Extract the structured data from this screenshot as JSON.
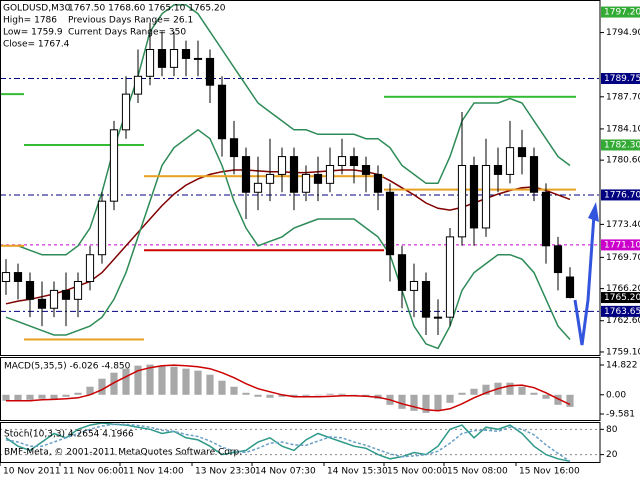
{
  "chart_data": [
    {
      "type": "candlestick",
      "title": "GOLDUSD,M30",
      "quote": "1767.50 1768.60 1765.10 1765.20",
      "info": [
        "High= 1786",
        "Previous Days Range= 26.1",
        "Low= 1759.9",
        "Current Days Range= 350",
        "Close= 1767.4"
      ],
      "categories": [
        "10 Nov 2011",
        null,
        null,
        null,
        null,
        "11 Nov 06:00",
        null,
        null,
        null,
        null,
        "11 Nov 14:00",
        null,
        null,
        null,
        null,
        null,
        "13 Nov 23:30",
        null,
        null,
        null,
        null,
        "14 Nov 07:30",
        null,
        null,
        null,
        null,
        null,
        "14 Nov 15:30",
        null,
        null,
        null,
        null,
        "15 Nov 00:00",
        null,
        null,
        null,
        null,
        "15 Nov 08:00",
        null,
        null,
        null,
        null,
        null,
        "15 Nov 16:00",
        null,
        null,
        null,
        null
      ],
      "open": [
        1767,
        1768,
        1767,
        1765,
        1764,
        1766,
        1765,
        1767,
        1770,
        1776,
        1784,
        1788,
        1790,
        1793,
        1791,
        1793,
        1792,
        1792,
        1789,
        1783,
        1781,
        1777,
        1778,
        1779,
        1781,
        1777,
        1779,
        1778,
        1780,
        1781,
        1780,
        1779,
        1777,
        1770,
        1766,
        1767,
        1763,
        1763,
        1772,
        1780,
        1773,
        1780,
        1779,
        1782,
        1781,
        1777,
        1771,
        1767.5
      ],
      "high": [
        1769.5,
        1769,
        1768,
        1767,
        1767,
        1768,
        1768,
        1771,
        1777,
        1785,
        1790,
        1793,
        1796,
        1795,
        1795,
        1794,
        1794,
        1793,
        1790,
        1785,
        1782,
        1781,
        1783,
        1782,
        1782,
        1780,
        1781,
        1782,
        1783,
        1782,
        1781,
        1780,
        1778,
        1771,
        1769,
        1768,
        1765,
        1773,
        1786,
        1781,
        1783,
        1782,
        1785,
        1784,
        1782,
        1778,
        1772,
        1768.6
      ],
      "low": [
        1765.5,
        1765,
        1763,
        1762,
        1763,
        1762,
        1763,
        1766,
        1769,
        1775,
        1783,
        1787,
        1789,
        1790,
        1790,
        1790,
        1790,
        1787,
        1781,
        1779,
        1774,
        1775,
        1776,
        1777,
        1775,
        1776,
        1776,
        1777,
        1779,
        1778,
        1777,
        1775,
        1767,
        1764,
        1763,
        1761,
        1761,
        1762,
        1771,
        1771,
        1772,
        1777,
        1778,
        1779,
        1776,
        1769,
        1766,
        1765.1
      ],
      "close": [
        1768,
        1767,
        1765,
        1764,
        1766,
        1765,
        1767,
        1770,
        1776,
        1784,
        1788,
        1790,
        1793,
        1791,
        1793,
        1792,
        1792,
        1789,
        1783,
        1781,
        1777,
        1778,
        1779,
        1781,
        1777,
        1779,
        1778,
        1780,
        1781,
        1780,
        1779,
        1777,
        1770,
        1766,
        1767,
        1763,
        1763,
        1772,
        1780,
        1773,
        1780,
        1779,
        1782,
        1781,
        1777,
        1771,
        1768,
        1765.2
      ],
      "series": [
        {
          "color": "#2e8b57",
          "style": "line",
          "values": [
            1771,
            1771,
            1770.5,
            1770,
            1770,
            1770,
            1771,
            1773,
            1777,
            1782,
            1786,
            1790,
            1795,
            1797,
            1798,
            1798,
            1797,
            1795,
            1793,
            1791,
            1789,
            1787,
            1786,
            1785,
            1784,
            1784,
            1783.5,
            1783.5,
            1783.5,
            1783.5,
            1783,
            1783,
            1782,
            1780,
            1779,
            1778,
            1778,
            1781,
            1785,
            1787,
            1787,
            1787,
            1787.5,
            1787,
            1785,
            1783,
            1781,
            1780
          ]
        },
        {
          "color": "#800000",
          "style": "line",
          "values": [
            1764.5,
            1764.8,
            1765,
            1765.3,
            1765.6,
            1766,
            1766.5,
            1767,
            1768,
            1769.5,
            1771,
            1772.5,
            1774,
            1775.5,
            1776.8,
            1777.8,
            1778.5,
            1779,
            1779.3,
            1779.5,
            1779.5,
            1779.4,
            1779.3,
            1779.3,
            1779.2,
            1779.2,
            1779.3,
            1779.4,
            1779.5,
            1779.5,
            1779.3,
            1779,
            1778.3,
            1777.5,
            1776.7,
            1775.8,
            1775.2,
            1775,
            1775.3,
            1775.8,
            1776.3,
            1776.8,
            1777.2,
            1777.5,
            1777.6,
            1777.2,
            1776.7,
            1776.2
          ]
        },
        {
          "color": "#2e8b57",
          "style": "line",
          "values": [
            1763,
            1762.5,
            1762,
            1761.5,
            1761,
            1761,
            1761.5,
            1762,
            1763,
            1765,
            1768,
            1772,
            1776,
            1780,
            1782,
            1783,
            1784,
            1783,
            1780,
            1776,
            1773,
            1771,
            1771.5,
            1772,
            1773,
            1773.5,
            1774,
            1774,
            1774,
            1774,
            1773,
            1772,
            1770,
            1766,
            1762,
            1760,
            1759.5,
            1762,
            1766,
            1768,
            1769,
            1770,
            1770,
            1769.5,
            1768,
            1765,
            1762,
            1760.5
          ]
        },
        {
          "color": "#33bb33",
          "style": "step",
          "values": [
            1788,
            1788,
            1782.3,
            1782.3,
            1782.3,
            1782.3,
            1782.3,
            1782.3,
            1782.3,
            1782.3,
            1782.3,
            1782.3,
            null,
            null,
            null,
            null,
            null,
            null,
            null,
            null,
            null,
            null,
            null,
            null,
            null,
            null,
            null,
            null,
            null,
            null,
            null,
            null,
            1787.7,
            1787.7,
            1787.7,
            1787.7,
            1787.7,
            1787.7,
            1787.7,
            1787.7,
            1787.7,
            1787.7,
            1787.7,
            1787.7,
            1787.7,
            1787.7,
            1787.7,
            1787.7
          ]
        },
        {
          "color": "#e8a020",
          "style": "step",
          "values": [
            1771,
            1771,
            1760.5,
            1760.5,
            1760.5,
            1760.5,
            1760.5,
            1760.5,
            1760.5,
            1760.5,
            1760.5,
            1760.5,
            1778.8,
            1778.8,
            1778.8,
            1778.8,
            1778.8,
            1778.8,
            1778.8,
            1778.8,
            1778.8,
            1778.8,
            1778.8,
            1778.8,
            1778.8,
            1778.8,
            1778.8,
            1778.8,
            1778.8,
            1778.8,
            1778.8,
            1778.8,
            1777.3,
            1777.3,
            1777.3,
            1777.3,
            1777.3,
            1777.3,
            1777.3,
            1777.3,
            1777.3,
            1777.3,
            1777.3,
            1777.3,
            1777.3,
            1777.3,
            1777.3,
            1777.3
          ]
        },
        {
          "color": "#cc0000",
          "style": "step",
          "values": [
            null,
            null,
            null,
            null,
            null,
            null,
            null,
            null,
            null,
            null,
            null,
            null,
            1770.5,
            1770.5,
            1770.5,
            1770.5,
            1770.5,
            1770.5,
            1770.5,
            1770.5,
            1770.5,
            1770.5,
            1770.5,
            1770.5,
            1770.5,
            1770.5,
            1770.5,
            1770.5,
            1770.5,
            1770.5,
            1770.5,
            1770.5,
            null,
            null,
            null,
            null,
            null,
            null,
            null,
            null,
            null,
            null,
            null,
            null,
            null,
            null,
            null,
            null
          ]
        }
      ],
      "hlines": [
        {
          "value": 1789.75,
          "color": "#000080",
          "dash": "6 3 2 3"
        },
        {
          "value": 1776.7,
          "color": "#000080",
          "dash": "6 3 2 3"
        },
        {
          "value": 1763.65,
          "color": "#000080",
          "dash": "6 3 2 3"
        },
        {
          "value": 1771.1,
          "color": "#cc00cc",
          "dash": "3 3"
        }
      ],
      "price_tags": [
        {
          "value": 1797.2,
          "label": "1797.20",
          "color": "#33aa33"
        },
        {
          "value": 1789.75,
          "label": "1789.75",
          "color": "#000080"
        },
        {
          "value": 1782.3,
          "label": "1782.30",
          "color": "#33aa33"
        },
        {
          "value": 1776.7,
          "label": "1776.70",
          "color": "#000080"
        },
        {
          "value": 1771.1,
          "label": "1771.10",
          "color": "#cc00cc"
        },
        {
          "value": 1765.2,
          "label": "1765.20",
          "color": "#000000"
        },
        {
          "value": 1763.65,
          "label": "1763.65",
          "color": "#000080"
        }
      ],
      "ylim": [
        1758.76,
        1798.55
      ],
      "yticks": [
        {
          "value": 1794.9,
          "label": "1794.90"
        },
        {
          "value": 1787.7,
          "label": "1787.70"
        },
        {
          "value": 1784.1,
          "label": "1784.10"
        },
        {
          "value": 1780.6,
          "label": "1780.60"
        },
        {
          "value": 1773.4,
          "label": "1773.40"
        },
        {
          "value": 1769.7,
          "label": "1769.70"
        },
        {
          "value": 1766.2,
          "label": "1766.20"
        },
        {
          "value": 1762.6,
          "label": "1762.60"
        },
        {
          "value": 1759.1,
          "label": "1759.10"
        }
      ]
    },
    {
      "type": "macd",
      "title": "MACD(5,35,5) -6.026 -4.850",
      "series": [
        {
          "color": "#a8a8a8",
          "style": "histogram",
          "values": [
            -3,
            -3,
            -2.5,
            -2,
            -2,
            -1,
            1,
            4,
            8,
            11,
            13,
            14.5,
            15,
            14.5,
            14,
            13,
            12,
            10,
            7,
            4,
            1,
            -1,
            -1.5,
            -1,
            -1,
            -0.5,
            0,
            0.5,
            0.5,
            0,
            -1,
            -2,
            -5,
            -7,
            -8,
            -9,
            -8,
            -4,
            1,
            3,
            5,
            6,
            6,
            4,
            1,
            -2,
            -5,
            -6.026
          ]
        },
        {
          "color": "#cc0000",
          "style": "line",
          "values": [
            -3,
            -3,
            -3,
            -2.5,
            -2.3,
            -2,
            -1.5,
            0,
            2.5,
            6,
            9,
            12,
            13.5,
            14.5,
            14.8,
            14.5,
            14,
            13,
            11,
            8.5,
            5.5,
            3,
            1.5,
            0,
            -1,
            -1,
            -1,
            -0.8,
            -0.5,
            -0.5,
            -0.7,
            -1.2,
            -2.5,
            -4.5,
            -6,
            -7.5,
            -8,
            -7,
            -4.5,
            -1.5,
            1,
            3,
            4.5,
            4.8,
            3.5,
            1,
            -2,
            -4.85
          ]
        }
      ],
      "ylim": [
        -12.57,
        18.81
      ],
      "yticks": [
        14.822,
        {
          "value": 0,
          "label": "0.00"
        },
        -9.581
      ]
    },
    {
      "type": "stochastic",
      "title": "Stoch(10,3,3) 4.2654 4.1966",
      "watermark": "BMF-Meta, © 2001-2011 MetaQuotes Software Corp.",
      "series": [
        {
          "color": "#2e9a8a",
          "style": "line",
          "values": [
            60,
            40,
            30,
            50,
            70,
            60,
            80,
            90,
            95,
            92,
            90,
            85,
            80,
            70,
            75,
            60,
            55,
            40,
            20,
            25,
            30,
            50,
            60,
            40,
            30,
            55,
            70,
            60,
            50,
            40,
            35,
            20,
            10,
            15,
            25,
            20,
            40,
            80,
            90,
            60,
            85,
            80,
            90,
            70,
            40,
            20,
            10,
            4.2654
          ]
        },
        {
          "color": "#6aa0c8",
          "style": "dashed",
          "values": [
            55,
            50,
            40,
            40,
            50,
            60,
            70,
            80,
            88,
            92,
            92,
            89,
            85,
            78,
            75,
            68,
            63,
            52,
            38,
            28,
            25,
            35,
            47,
            50,
            43,
            42,
            52,
            62,
            60,
            50,
            42,
            32,
            22,
            15,
            17,
            20,
            28,
            47,
            70,
            77,
            78,
            75,
            85,
            80,
            67,
            43,
            23,
            4.1966
          ]
        }
      ],
      "ylim": [
        2.5,
        95
      ],
      "yticks": [
        80,
        20
      ],
      "grid": true
    }
  ]
}
